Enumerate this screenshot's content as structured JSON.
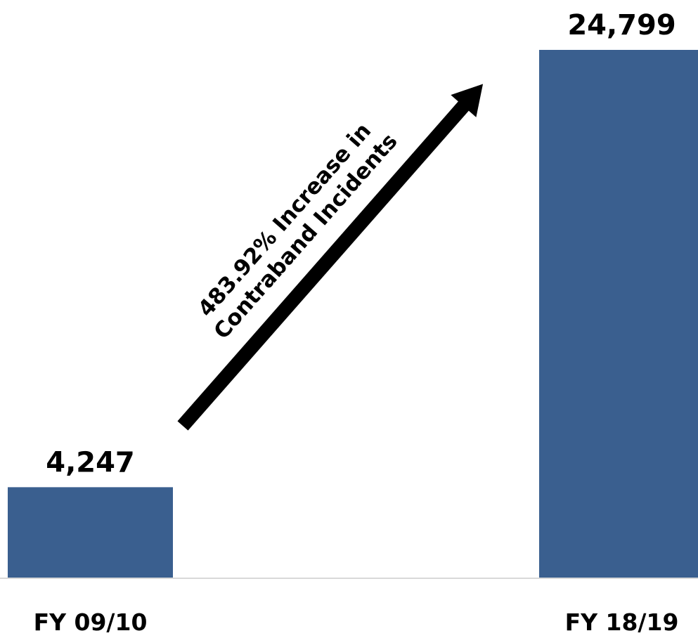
{
  "chart_data": {
    "type": "bar",
    "categories": [
      "FY 09/10",
      "FY 18/19"
    ],
    "values": [
      4247,
      24799
    ],
    "value_labels": [
      "4,247",
      "24,799"
    ],
    "title": "",
    "xlabel": "",
    "ylabel": "",
    "ylim": [
      0,
      24799
    ],
    "grid": false,
    "legend": "none",
    "annotation": {
      "lines": [
        "483.92% Increase in",
        "Contraband Incidents"
      ]
    }
  },
  "colors": {
    "bar": "#3a5f8f",
    "axis": "#d9d9d9",
    "arrow": "#000000",
    "text": "#000000"
  }
}
